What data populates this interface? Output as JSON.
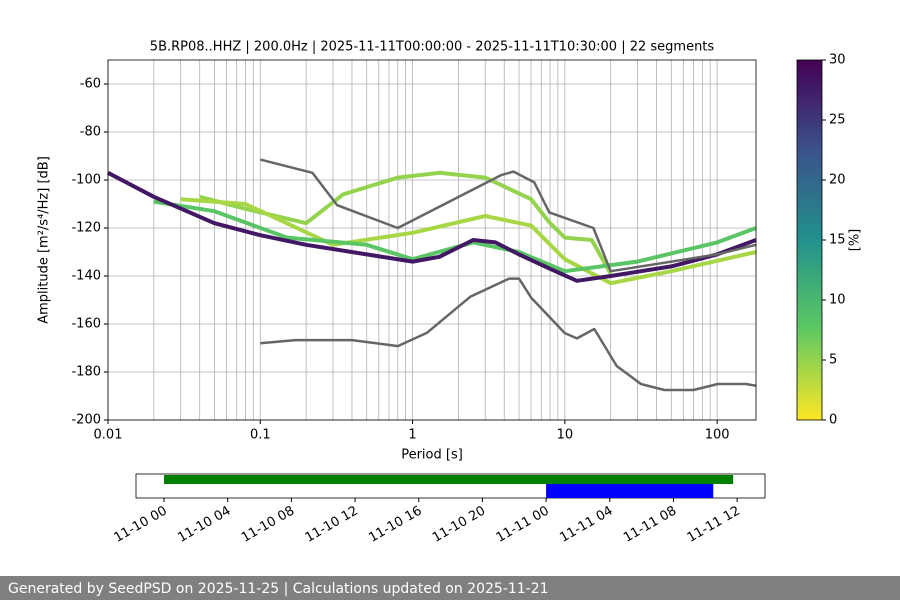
{
  "chart_data": [
    {
      "type": "ppsd",
      "title": "5B.RP08..HHZ | 200.0Hz | 2025-11-11T00:00:00 - 2025-11-11T10:30:00 | 22 segments",
      "xlabel": "Period [s]",
      "ylabel": "Amplitude [m²/s⁴/Hz] [dB]",
      "xscale": "log",
      "xlim": [
        0.01,
        180
      ],
      "ylim": [
        -200,
        -50
      ],
      "xticks": [
        0.01,
        0.1,
        1,
        10,
        100
      ],
      "yticks": [
        -200,
        -180,
        -160,
        -140,
        -120,
        -100,
        -80,
        -60
      ],
      "grid": true,
      "minor_grid": true,
      "series": [
        {
          "percent": 5,
          "x": [
            0.04,
            0.08,
            0.2,
            0.35,
            0.8,
            1.5,
            3,
            6,
            8,
            10,
            15,
            20
          ],
          "values": [
            -107,
            -112,
            -118,
            -106,
            -99,
            -97,
            -99,
            -108,
            -118,
            -124,
            -125,
            -139
          ]
        },
        {
          "percent": 4,
          "x": [
            0.03,
            0.08,
            0.3,
            1,
            3,
            6,
            10,
            20,
            50,
            180
          ],
          "values": [
            -108,
            -110,
            -127,
            -122,
            -115,
            -119,
            -133,
            -143,
            -138,
            -130
          ]
        },
        {
          "percent": 8,
          "x": [
            0.02,
            0.05,
            0.15,
            0.5,
            1,
            2.5,
            5,
            10,
            30,
            100,
            180
          ],
          "values": [
            -109,
            -113,
            -124,
            -127,
            -133,
            -126,
            -130,
            -138,
            -134,
            -126,
            -120
          ]
        },
        {
          "percent": 28,
          "x": [
            0.01,
            0.02,
            0.05,
            0.1,
            0.2,
            0.5,
            1,
            1.5,
            2.5,
            3.5,
            5,
            8,
            12,
            20,
            50,
            100,
            180
          ],
          "values": [
            -97,
            -107,
            -118,
            -123,
            -127,
            -131,
            -134,
            -132,
            -125,
            -126,
            -131,
            -137,
            -142,
            -140,
            -136,
            -131,
            -125
          ]
        }
      ],
      "noise_models": [
        {
          "color": "#666666",
          "x": [
            0.1,
            0.22,
            0.32,
            0.8,
            3.8,
            4.6,
            6.3,
            7.9,
            15.4,
            20,
            100,
            180
          ],
          "values": [
            -91.5,
            -97,
            -110.5,
            -120,
            -98,
            -96.5,
            -101,
            -113.5,
            -120,
            -138,
            -131,
            -127
          ]
        },
        {
          "color": "#666666",
          "x": [
            0.1,
            0.17,
            0.4,
            0.8,
            1.24,
            2.4,
            4.3,
            5,
            6,
            10,
            12,
            15.6,
            21.9,
            31.6,
            45,
            70,
            101,
            154,
            180
          ],
          "values": [
            -168,
            -166.7,
            -166.7,
            -169.2,
            -163.7,
            -148.6,
            -141.1,
            -141.1,
            -149,
            -163.8,
            -166,
            -162.1,
            -177.5,
            -185,
            -187.5,
            -187.5,
            -185,
            -185,
            -185.7
          ]
        }
      ],
      "colorbar": {
        "label": "[%]",
        "colormap": "viridis_r",
        "lim": [
          0,
          30
        ],
        "ticks": [
          0,
          5,
          10,
          15,
          20,
          25,
          30
        ]
      }
    },
    {
      "type": "timeline",
      "xlim": [
        -1.76,
        37.75
      ],
      "xticks": [
        {
          "value": 0,
          "label": "11-10 00"
        },
        {
          "value": 4,
          "label": "11-10 04"
        },
        {
          "value": 8,
          "label": "11-10 08"
        },
        {
          "value": 12,
          "label": "11-10 12"
        },
        {
          "value": 16,
          "label": "11-10 16"
        },
        {
          "value": 20,
          "label": "11-10 20"
        },
        {
          "value": 24,
          "label": "11-11 00"
        },
        {
          "value": 28,
          "label": "11-11 04"
        },
        {
          "value": 32,
          "label": "11-11 08"
        },
        {
          "value": 36,
          "label": "11-11 12"
        }
      ],
      "bars": [
        {
          "color": "#008000",
          "start": 0,
          "end": 35.75
        },
        {
          "color": "#0000ff",
          "start": 24,
          "end": 34.5
        }
      ]
    }
  ],
  "footer": "Generated by SeedPSD on 2025-11-25 | Calculations updated on 2025-11-21"
}
